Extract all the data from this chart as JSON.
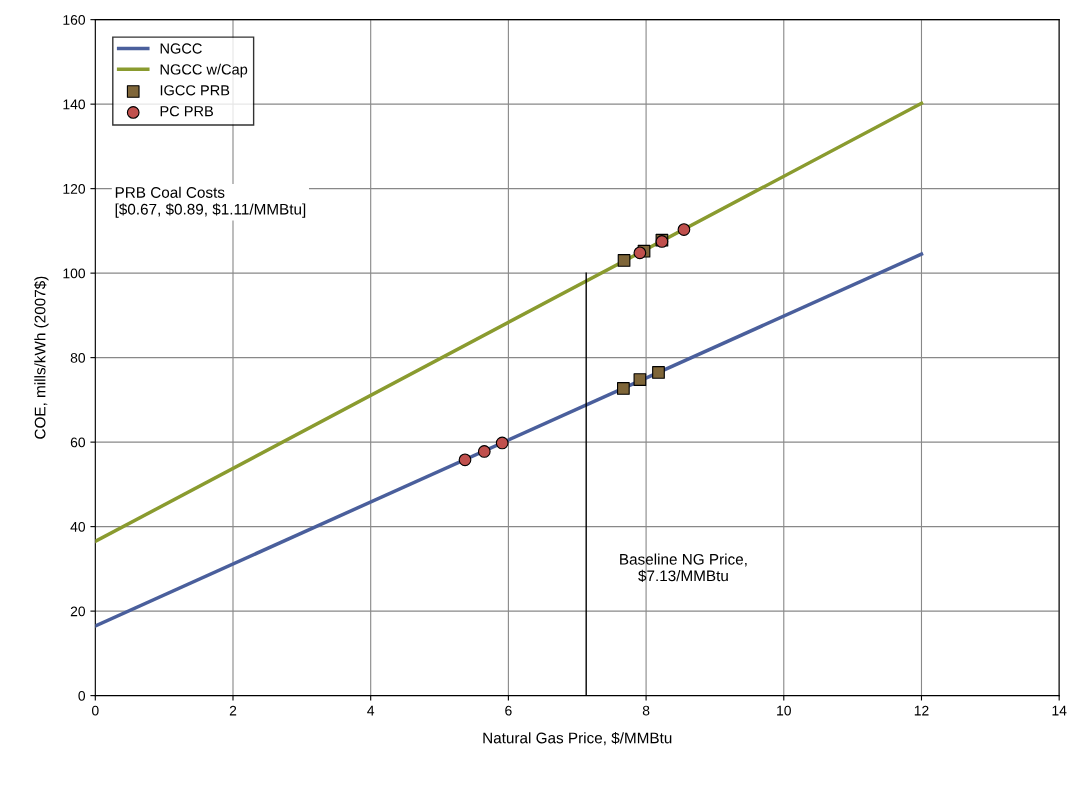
{
  "chart_data": {
    "type": "line",
    "xlabel": "Natural Gas Price, $/MMBtu",
    "ylabel": "COE, mills/kWh (2007$)",
    "xlim": [
      0,
      14
    ],
    "xticks": [
      0,
      2,
      4,
      6,
      8,
      10,
      12,
      14
    ],
    "ylim": [
      0,
      160
    ],
    "yticks": [
      0,
      20,
      40,
      60,
      80,
      100,
      120,
      140,
      160
    ],
    "grid": true,
    "legend": "top left",
    "series": [
      {
        "name": "NGCC",
        "color": "#4a5f9c",
        "x": [
          0,
          12
        ],
        "values": [
          16.5,
          104.5
        ]
      },
      {
        "name": "NGCC w/Cap",
        "color": "#8a9b2f",
        "x": [
          0,
          12
        ],
        "values": [
          36.5,
          140.2
        ]
      },
      {
        "name": "IGCC PRB",
        "type": "scatter",
        "marker": "square",
        "color": "#7f6639",
        "x": [
          7.67,
          7.91,
          8.18,
          7.68,
          7.97,
          8.23
        ],
        "values": [
          72.7,
          74.8,
          76.5,
          103,
          105.2,
          107.8
        ]
      },
      {
        "name": "PC PRB",
        "type": "scatter",
        "marker": "circle",
        "color": "#c0504d",
        "x": [
          5.37,
          5.65,
          5.91,
          7.91,
          8.23,
          8.55
        ],
        "values": [
          55.8,
          57.8,
          59.8,
          104.8,
          107.5,
          110.3
        ]
      },
      {
        "color": "#000000",
        "x": [
          7.13,
          7.13
        ],
        "values": [
          0,
          100
        ]
      }
    ],
    "annotations": [
      "PRB Coal Costs\n[$0.67, $0.89, $1.11/MMBtu]",
      {
        "text": "Baseline NG Price,\n$7.13/MMBtu",
        "x": 7.13,
        "y": 30
      }
    ]
  }
}
